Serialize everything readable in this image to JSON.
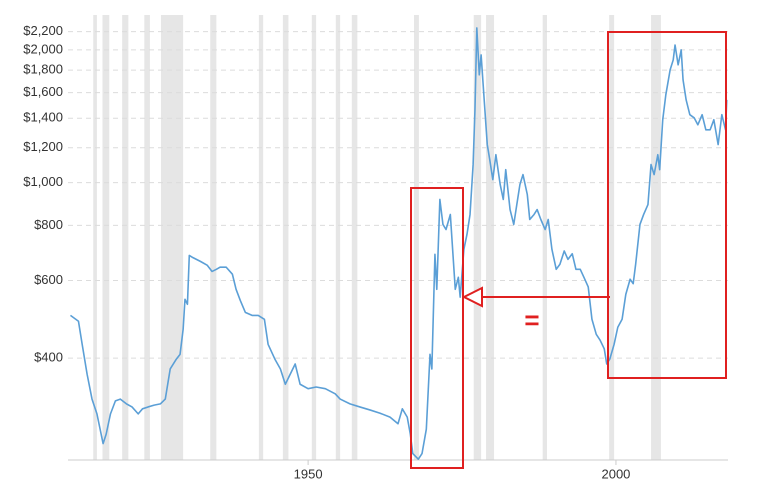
{
  "chart_data": {
    "type": "line",
    "log_y": true,
    "grid": true,
    "color": "#5b9fd6",
    "recession_color": "#e6e6e6",
    "annotation": "=",
    "xlim": [
      1911,
      2018.2
    ],
    "xticks": [
      1950,
      2000
    ],
    "ylim": [
      235,
      2400
    ],
    "yticks": [
      {
        "value": 400,
        "label": "$400"
      },
      {
        "value": 600,
        "label": "$600"
      },
      {
        "value": 800,
        "label": "$800"
      },
      {
        "value": 1000,
        "label": "$1,000"
      },
      {
        "value": 1200,
        "label": "$1,200"
      },
      {
        "value": 1400,
        "label": "$1,400"
      },
      {
        "value": 1600,
        "label": "$1,600"
      },
      {
        "value": 1800,
        "label": "$1,800"
      },
      {
        "value": 2000,
        "label": "$2,000"
      },
      {
        "value": 2200,
        "label": "$2,200"
      }
    ],
    "recessions": [
      [
        1915.1,
        1915.7
      ],
      [
        1916.6,
        1917.7
      ],
      [
        1919.8,
        1920.8
      ],
      [
        1923.4,
        1924.3
      ],
      [
        1926.1,
        1929.7
      ],
      [
        1934.1,
        1935.1
      ],
      [
        1942.0,
        1942.7
      ],
      [
        1945.9,
        1946.8
      ],
      [
        1950.6,
        1951.3
      ],
      [
        1954.5,
        1955.2
      ],
      [
        1957.1,
        1958.0
      ],
      [
        1967.2,
        1968.0
      ],
      [
        1976.9,
        1978.1
      ],
      [
        1978.9,
        1980.2
      ],
      [
        1988.1,
        1988.8
      ],
      [
        1998.9,
        1999.7
      ],
      [
        2005.7,
        2007.3
      ]
    ],
    "x": [
      1911.4,
      1912.7,
      1913.3,
      1914.1,
      1914.9,
      1915.7,
      1916.7,
      1917.2,
      1917.9,
      1918.7,
      1919.5,
      1920.5,
      1921.4,
      1922.4,
      1923.1,
      1924.0,
      1925.0,
      1926.0,
      1926.8,
      1927.6,
      1928.6,
      1929.2,
      1929.7,
      1930.0,
      1930.4,
      1930.7,
      1931.3,
      1932.5,
      1933.6,
      1934.4,
      1935.1,
      1935.7,
      1936.7,
      1937.7,
      1938.3,
      1939.0,
      1939.8,
      1940.9,
      1941.9,
      1942.9,
      1943.5,
      1944.6,
      1945.5,
      1946.3,
      1947.1,
      1947.9,
      1948.7,
      1950,
      1951.3,
      1952.8,
      1954.4,
      1955.2,
      1956.8,
      1958.4,
      1960.1,
      1961.7,
      1963.3,
      1964.6,
      1965.3,
      1966.1,
      1966.6,
      1967.0,
      1967.9,
      1968.5,
      1969.2,
      1969.8,
      1970.1,
      1970.6,
      1970.9,
      1971.4,
      1971.9,
      1972.4,
      1973.1,
      1973.9,
      1974.4,
      1974.7,
      1975.3,
      1975.8,
      1976.3,
      1976.8,
      1977.1,
      1977.4,
      1977.8,
      1978.1,
      1978.6,
      1979.1,
      1979.5,
      1980.0,
      1980.5,
      1981.2,
      1981.7,
      1982.1,
      1982.8,
      1983.4,
      1983.9,
      1984.4,
      1984.9,
      1985.6,
      1986.0,
      1986.7,
      1987.2,
      1987.8,
      1988.5,
      1989.0,
      1989.6,
      1990.3,
      1990.9,
      1991.6,
      1992.2,
      1992.9,
      1993.5,
      1994.2,
      1994.8,
      1995.5,
      1996.1,
      1996.8,
      1997.4,
      1998.1,
      1998.5,
      1999.0,
      1999.7,
      2000.3,
      2001.0,
      2001.6,
      2002.3,
      2002.8,
      2003.2,
      2003.9,
      2004.5,
      2005.2,
      2005.7,
      2006.2,
      2006.8,
      2007.1,
      2007.6,
      2008.1,
      2008.8,
      2009.3,
      2009.6,
      2010.1,
      2010.6,
      2010.9,
      2011.4,
      2012.0,
      2012.7,
      2013.3,
      2014.0,
      2014.6,
      2015.3,
      2015.9,
      2016.6,
      2017.2,
      2017.8,
      2018.0
    ],
    "values": [
      500,
      485,
      430,
      368,
      323,
      299,
      256,
      269,
      299,
      320,
      323,
      315,
      310,
      299,
      307,
      310,
      313,
      315,
      323,
      378,
      398,
      408,
      465,
      544,
      530,
      684,
      676,
      663,
      650,
      629,
      636,
      643,
      643,
      620,
      573,
      540,
      508,
      500,
      500,
      490,
      430,
      398,
      378,
      349,
      368,
      388,
      349,
      341,
      344,
      341,
      332,
      323,
      315,
      310,
      305,
      300,
      294,
      284,
      307,
      294,
      269,
      243,
      236,
      243,
      276,
      408,
      378,
      688,
      573,
      916,
      804,
      783,
      847,
      573,
      610,
      550,
      706,
      763,
      847,
      1099,
      1463,
      2243,
      1756,
      1948,
      1541,
      1220,
      1128,
      1016,
      1157,
      990,
      916,
      1070,
      869,
      804,
      892,
      990,
      1043,
      940,
      825,
      847,
      869,
      825,
      783,
      825,
      706,
      636,
      653,
      700,
      670,
      690,
      636,
      636,
      610,
      580,
      490,
      453,
      440,
      420,
      388,
      398,
      430,
      470,
      490,
      558,
      604,
      590,
      653,
      804,
      847,
      892,
      1099,
      1043,
      1157,
      1070,
      1389,
      1582,
      1802,
      1898,
      2052,
      1850,
      2000,
      1710,
      1541,
      1426,
      1403,
      1353,
      1426,
      1318,
      1318,
      1389,
      1220,
      1426,
      1318,
      1541
    ]
  }
}
